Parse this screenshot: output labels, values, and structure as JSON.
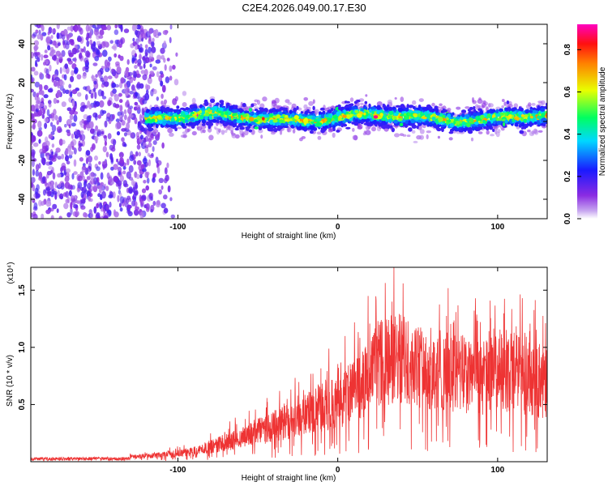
{
  "title": "C2E4.2026.049.00.17.E30",
  "chart_data": [
    {
      "type": "heatmap",
      "title": "C2E4.2026.049.00.17.E30",
      "xlabel": "Height of straight line (km)",
      "ylabel": "Frequency (Hz)",
      "xlim": [
        -192,
        131
      ],
      "ylim": [
        -50,
        50
      ],
      "xticks": [
        -100,
        0,
        100
      ],
      "yticks": [
        -40,
        -20,
        0,
        20,
        40
      ],
      "colorbar": {
        "label": "Normalized spectral amplitude",
        "range": [
          0,
          0.92
        ],
        "ticks": [
          "0.0",
          "0.2",
          "0.4",
          "0.6",
          "0.8"
        ],
        "tick_values": [
          0.0,
          0.2,
          0.4,
          0.6,
          0.8
        ],
        "colors": [
          "#ffffff",
          "#8a2be2",
          "#0000ff",
          "#00ffff",
          "#00ff00",
          "#ffff00",
          "#ff0000",
          "#ff00ff"
        ]
      },
      "noise_region_x": [
        -192,
        -105
      ],
      "band": {
        "x_start": -120,
        "center_freq_hz": 2,
        "half_width_hz": 5,
        "description": "narrow band of high amplitude around 0-5 Hz from -120 km to 131 km"
      }
    },
    {
      "type": "line",
      "xlabel": "Height of straight line (km)",
      "ylabel": "SNR (10 * v/v)",
      "ylabel_multiplier": "(x10⁴)",
      "xlim": [
        -192,
        131
      ],
      "ylim": [
        0,
        1.7
      ],
      "xticks": [
        -100,
        0,
        100
      ],
      "yticks": [
        0.5,
        1.0,
        1.5
      ],
      "ytick_labels": [
        "0.5",
        "1.0",
        "1.5"
      ],
      "color": "#ee3333",
      "envelope": {
        "x": [
          -192,
          -160,
          -140,
          -120,
          -100,
          -90,
          -80,
          -70,
          -60,
          -50,
          -40,
          -30,
          -20,
          -10,
          0,
          10,
          20,
          25,
          30,
          40,
          50,
          60,
          70,
          80,
          90,
          100,
          110,
          120,
          131
        ],
        "y": [
          0.02,
          0.02,
          0.03,
          0.05,
          0.07,
          0.09,
          0.13,
          0.17,
          0.21,
          0.26,
          0.31,
          0.36,
          0.42,
          0.48,
          0.52,
          0.62,
          0.75,
          0.85,
          0.88,
          0.9,
          0.85,
          0.8,
          0.78,
          0.75,
          0.72,
          0.8,
          0.78,
          0.72,
          0.68
        ]
      }
    }
  ]
}
